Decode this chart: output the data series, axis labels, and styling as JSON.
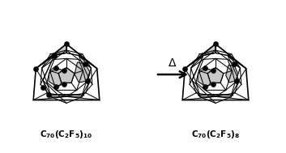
{
  "background_color": "#ffffff",
  "fig_width": 3.53,
  "fig_height": 1.89,
  "dpi": 100,
  "gray_fill": "#c8c8c8",
  "black": "#000000",
  "lw_outer": 1.2,
  "lw_inner": 0.75,
  "dot_size": 3.8
}
